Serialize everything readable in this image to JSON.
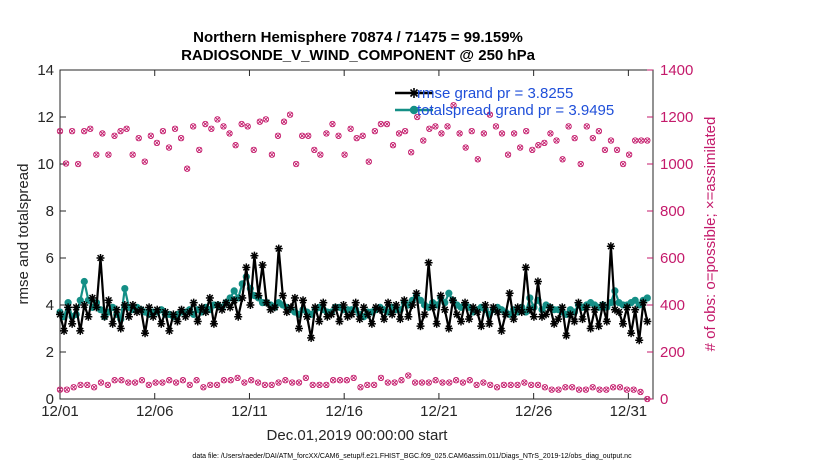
{
  "chart_data": {
    "type": "line",
    "title_line1": "Northern Hemisphere 70874 / 71475 = 99.159%",
    "title_line2": "RADIOSONDE_V_WIND_COMPONENT @ 250 hPa",
    "xlabel": "Dec.01,2019 00:00:00 start",
    "ylabel": "rmse and totalspread",
    "ylabel_right": "# of obs: o=possible; ×=assimilated",
    "footer": "data file: /Users/raeder/DAI/ATM_forcXX/CAM6_setup/f.e21.FHIST_BGC.f09_025.CAM6assim.011/Diags_NTrS_2019-12/obs_diag_output.nc",
    "x_tick_labels": [
      "12/01",
      "12/06",
      "12/11",
      "12/16",
      "12/21",
      "12/26",
      "12/31"
    ],
    "x_tick_days": [
      0,
      5,
      10,
      15,
      20,
      25,
      30
    ],
    "xlim": [
      0,
      31.3
    ],
    "ylim": [
      0,
      14
    ],
    "y_ticks": [
      "0",
      "2",
      "4",
      "6",
      "8",
      "10",
      "12",
      "14"
    ],
    "ylim_right": [
      0,
      1400
    ],
    "y_ticks_right": [
      "0",
      "200",
      "400",
      "600",
      "800",
      "1000",
      "1200",
      "1400"
    ],
    "colors": {
      "rmse": "#000000",
      "spread": "#148f86",
      "obs": "#c41a6b",
      "legend_text": "#1f4fd9"
    },
    "series": [
      {
        "name": "rmse grand pr = 3.8255",
        "values": [
          3.6,
          2.9,
          3.9,
          3.2,
          3.9,
          2.9,
          4.0,
          3.5,
          4.3,
          3.9,
          6.0,
          3.5,
          4.2,
          3.2,
          3.8,
          3.0,
          4.0,
          3.5,
          4.0,
          3.7,
          3.8,
          2.8,
          3.9,
          3.5,
          3.8,
          3.2,
          3.7,
          2.9,
          3.6,
          3.3,
          3.8,
          3.5,
          3.7,
          4.1,
          3.3,
          3.9,
          3.7,
          4.3,
          3.2,
          4.0,
          3.8,
          4.1,
          3.9,
          4.2,
          3.5,
          4.3,
          5.6,
          4.0,
          6.1,
          4.4,
          5.7,
          4.1,
          3.8,
          3.9,
          6.4,
          4.4,
          3.7,
          3.9,
          4.3,
          3.0,
          4.2,
          3.5,
          2.6,
          3.9,
          3.3,
          4.1,
          3.5,
          3.6,
          3.9,
          3.3,
          4.0,
          3.5,
          3.6,
          4.1,
          3.4,
          3.9,
          3.6,
          3.2,
          3.9,
          3.8,
          3.4,
          4.1,
          3.6,
          4.0,
          3.4,
          4.2,
          3.5,
          4.0,
          4.5,
          3.1,
          3.6,
          5.8,
          3.9,
          3.2,
          4.4,
          3.8,
          3.0,
          4.2,
          3.6,
          3.3,
          4.1,
          3.4,
          3.9,
          3.7,
          3.1,
          4.0,
          3.2,
          3.9,
          3.7,
          2.9,
          3.6,
          4.5,
          3.4,
          3.9,
          3.7,
          5.6,
          3.8,
          3.5,
          5.0,
          3.5,
          3.6,
          3.9,
          3.2,
          3.4,
          3.9,
          2.7,
          3.6,
          3.3,
          4.1,
          3.4,
          3.9,
          3.0,
          3.8,
          3.1,
          4.0,
          3.3,
          6.5,
          3.8,
          3.7,
          3.2,
          3.9,
          2.8,
          3.8,
          2.5,
          4.1,
          3.3
        ],
        "display": "line-asterisk"
      },
      {
        "name": "totalspread grand pr = 3.9495",
        "values": [
          3.7,
          3.5,
          4.1,
          3.5,
          3.6,
          4.2,
          5.0,
          4.2,
          3.9,
          4.1,
          3.8,
          3.5,
          3.7,
          3.9,
          3.6,
          3.4,
          4.7,
          3.9,
          3.8,
          3.9,
          3.8,
          3.7,
          3.6,
          3.7,
          3.7,
          3.8,
          3.6,
          3.6,
          3.5,
          3.6,
          3.7,
          3.7,
          3.8,
          3.6,
          3.8,
          3.7,
          3.9,
          3.8,
          4.0,
          4.0,
          3.9,
          4.1,
          4.3,
          4.6,
          4.3,
          4.9,
          5.2,
          4.7,
          4.4,
          4.3,
          4.1,
          4.1,
          4.0,
          3.9,
          4.1,
          4.0,
          3.9,
          3.8,
          3.7,
          3.6,
          3.8,
          3.7,
          3.6,
          3.8,
          3.9,
          3.8,
          3.7,
          3.7,
          3.9,
          3.9,
          3.8,
          3.8,
          3.8,
          3.8,
          3.6,
          3.5,
          3.7,
          3.7,
          3.8,
          3.9,
          3.8,
          3.7,
          3.9,
          3.8,
          3.8,
          4.1,
          4.0,
          4.2,
          4.4,
          4.2,
          4.0,
          3.9,
          4.1,
          4.0,
          4.3,
          4.1,
          4.5,
          4.2,
          4.0,
          3.9,
          4.0,
          3.9,
          3.7,
          3.8,
          3.9,
          3.8,
          3.6,
          3.8,
          3.9,
          3.8,
          3.7,
          3.6,
          3.8,
          3.7,
          3.9,
          3.7,
          4.3,
          3.9,
          4.2,
          3.8,
          4.0,
          3.9,
          3.8,
          3.8,
          3.7,
          3.6,
          3.8,
          3.7,
          4.0,
          3.9,
          4.0,
          4.1,
          4.0,
          3.9,
          4.0,
          3.9,
          4.1,
          4.6,
          4.1,
          4.0,
          4.0,
          4.1,
          4.2,
          4.0,
          4.2,
          4.3
        ],
        "display": "line-circle"
      }
    ],
    "obs_possible_right": {
      "upper_y": [
        1140,
        1002,
        1140,
        1000,
        1140,
        1150,
        1040,
        1130,
        1040,
        1120,
        1140,
        1150,
        1040,
        1110,
        1010,
        1120,
        1090,
        1140,
        1070,
        1150,
        1110,
        980,
        1160,
        1060,
        1170,
        1150,
        1190,
        1160,
        1130,
        1080,
        1170,
        1160,
        1060,
        1180,
        1190,
        1040,
        1120,
        1180,
        1210,
        1000,
        1120,
        1120,
        1060,
        1040,
        1130,
        1170,
        1120,
        1040,
        1150,
        1110,
        1120,
        1010,
        1140,
        1170,
        1170,
        1080,
        1130,
        1140,
        1050,
        1200,
        1100,
        1150,
        1160,
        1130,
        1160,
        1250,
        1130,
        1070,
        1140,
        1020,
        1130,
        1210,
        1160,
        1130,
        1040,
        1130,
        1070,
        1140,
        1060,
        1080,
        1090,
        1130,
        1100,
        1020,
        1160,
        1110,
        1000,
        1160,
        1110,
        1140,
        1060,
        1100,
        1060,
        1000,
        1040,
        1100,
        1100,
        1100
      ],
      "lower_y": [
        40,
        40,
        50,
        60,
        60,
        50,
        70,
        60,
        80,
        80,
        70,
        70,
        80,
        60,
        70,
        70,
        80,
        70,
        80,
        60,
        80,
        50,
        60,
        60,
        80,
        80,
        90,
        70,
        80,
        70,
        60,
        60,
        70,
        80,
        70,
        70,
        90,
        60,
        60,
        60,
        80,
        80,
        80,
        90,
        50,
        60,
        60,
        90,
        70,
        70,
        80,
        100,
        70,
        70,
        70,
        80,
        70,
        70,
        80,
        70,
        80,
        60,
        70,
        60,
        50,
        60,
        60,
        60,
        70,
        60,
        60,
        50,
        40,
        40,
        50,
        50,
        40,
        40,
        50,
        40,
        40,
        50,
        50,
        40,
        40,
        30,
        0
      ]
    }
  }
}
